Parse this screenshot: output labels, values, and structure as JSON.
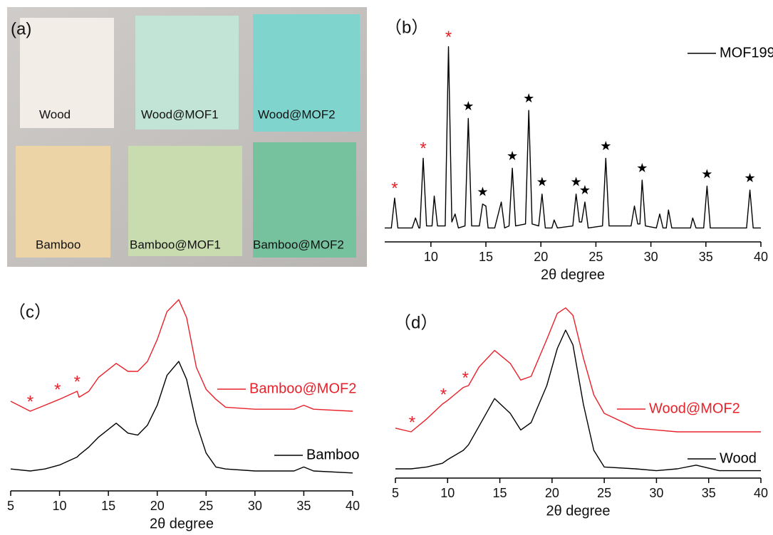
{
  "photo": {
    "label": "(a)",
    "samples": [
      "Wood",
      "Wood@MOF1",
      "Wood@MOF2",
      "Bamboo",
      "Bamboo@MOF1",
      "Bamboo@MOF2"
    ]
  },
  "chart_data": [
    {
      "type": "line",
      "label": "（b）",
      "xlabel": "2θ degree",
      "xlim": [
        5.8,
        40
      ],
      "xticks": [
        10,
        15,
        20,
        25,
        30,
        35,
        40
      ],
      "ylim": [
        0,
        100
      ],
      "legend": "upper right",
      "x": [
        5.8,
        6.4,
        6.7,
        7.0,
        8.3,
        8.6,
        8.9,
        9.0,
        9.3,
        9.6,
        10.1,
        10.3,
        10.6,
        11.3,
        11.6,
        11.9,
        12.2,
        12.5,
        13.1,
        13.4,
        13.7,
        14.4,
        14.7,
        15.0,
        15.2,
        15.8,
        16.4,
        16.7,
        17.1,
        17.4,
        17.7,
        18.6,
        18.9,
        19.2,
        19.8,
        20.1,
        20.4,
        21.0,
        21.2,
        21.5,
        22.9,
        23.2,
        23.5,
        23.7,
        24.0,
        24.3,
        25.6,
        25.9,
        26.2,
        28.2,
        28.5,
        28.8,
        29.0,
        29.2,
        29.5,
        30.5,
        30.8,
        31.1,
        31.4,
        31.6,
        31.9,
        33.6,
        33.8,
        34.1,
        34.8,
        35.1,
        35.4,
        38.7,
        39.0,
        39.3,
        40.0
      ],
      "series": [
        {
          "name": "MOF199",
          "color": "#000000",
          "values": [
            7,
            7,
            22,
            7,
            7,
            12,
            7,
            7,
            42,
            8,
            8,
            23,
            8,
            8,
            98,
            10,
            14,
            7,
            8,
            62,
            8,
            8,
            19,
            18,
            7,
            7,
            20,
            7,
            8,
            37,
            8,
            9,
            66,
            9,
            8,
            24,
            7,
            7,
            11,
            7,
            8,
            24,
            10,
            10,
            20,
            7,
            8,
            42,
            8,
            8,
            18,
            9,
            9,
            31,
            8,
            7,
            14,
            7,
            7,
            16,
            7,
            7,
            12,
            7,
            7,
            28,
            7,
            7,
            26,
            7,
            7
          ]
        }
      ],
      "annotations": [
        {
          "text": "*",
          "x": 6.7,
          "y": 22,
          "color": "#e8212a"
        },
        {
          "text": "*",
          "x": 9.3,
          "y": 42,
          "color": "#e8212a"
        },
        {
          "text": "*",
          "x": 11.6,
          "y": 98,
          "color": "#e8212a"
        },
        {
          "text": "★",
          "x": 13.4,
          "y": 62,
          "color": "#000000"
        },
        {
          "text": "★",
          "x": 14.7,
          "y": 19,
          "color": "#000000"
        },
        {
          "text": "★",
          "x": 17.4,
          "y": 37,
          "color": "#000000"
        },
        {
          "text": "★",
          "x": 18.9,
          "y": 66,
          "color": "#000000"
        },
        {
          "text": "★",
          "x": 20.1,
          "y": 24,
          "color": "#000000"
        },
        {
          "text": "★",
          "x": 23.2,
          "y": 24,
          "color": "#000000"
        },
        {
          "text": "★",
          "x": 24.0,
          "y": 20,
          "color": "#000000"
        },
        {
          "text": "★",
          "x": 25.9,
          "y": 42,
          "color": "#000000"
        },
        {
          "text": "★",
          "x": 29.2,
          "y": 31,
          "color": "#000000"
        },
        {
          "text": "★",
          "x": 35.1,
          "y": 28,
          "color": "#000000"
        },
        {
          "text": "★",
          "x": 39.0,
          "y": 26,
          "color": "#000000"
        }
      ]
    },
    {
      "type": "line",
      "label": "（c）",
      "xlabel": "2θ degree",
      "xlim": [
        5,
        40
      ],
      "xticks": [
        5,
        10,
        15,
        20,
        25,
        30,
        35,
        40
      ],
      "ylim": [
        0,
        100
      ],
      "x": [
        5,
        7,
        8.5,
        10,
        11.8,
        12,
        13,
        14,
        15.8,
        17,
        18,
        19,
        20,
        21,
        22.2,
        23,
        24,
        25,
        26,
        27,
        30,
        34,
        35,
        36,
        40
      ],
      "series": [
        {
          "name": "Bamboo@MOF2",
          "color": "#e8212a",
          "values": [
            45,
            40,
            43,
            46,
            50,
            47,
            50,
            57,
            64,
            60,
            60,
            65,
            76,
            90,
            96,
            87,
            62,
            51,
            46,
            42,
            41,
            41,
            43,
            41,
            40
          ]
        },
        {
          "name": "Bamboo",
          "color": "#000000",
          "values": [
            11,
            10,
            11,
            13,
            17,
            18,
            22,
            27,
            34,
            29,
            28,
            33,
            43,
            58,
            65,
            56,
            34,
            19,
            12,
            11,
            10,
            10,
            12,
            10,
            9
          ]
        }
      ],
      "annotations": [
        {
          "text": "*",
          "x": 7,
          "y": 40,
          "color": "#e8212a"
        },
        {
          "text": "*",
          "x": 9.8,
          "y": 46,
          "color": "#e8212a"
        },
        {
          "text": "*",
          "x": 11.8,
          "y": 50,
          "color": "#e8212a"
        }
      ]
    },
    {
      "type": "line",
      "label": "（d）",
      "xlabel": "2θ degree",
      "xlim": [
        5,
        40
      ],
      "xticks": [
        5,
        10,
        15,
        20,
        25,
        30,
        35,
        40
      ],
      "ylim": [
        0,
        100
      ],
      "x": [
        5,
        6.5,
        8,
        9.5,
        10,
        11.5,
        12,
        13,
        14.5,
        16,
        17,
        18,
        19.5,
        20.5,
        21.3,
        22,
        23,
        24,
        25,
        28,
        30,
        32,
        33.8,
        36,
        40
      ],
      "series": [
        {
          "name": "Wood@MOF2",
          "color": "#e8212a",
          "values": [
            27,
            25,
            32,
            40,
            42,
            49,
            50,
            60,
            69,
            62,
            53,
            55,
            75,
            89,
            92,
            88,
            65,
            45,
            35,
            27,
            26,
            25,
            25,
            25,
            25
          ]
        },
        {
          "name": "Wood",
          "color": "#000000",
          "values": [
            5,
            5,
            6,
            8,
            10,
            15,
            18,
            28,
            43,
            35,
            26,
            30,
            50,
            70,
            80,
            72,
            40,
            15,
            6,
            5,
            4,
            5,
            7,
            4,
            4
          ]
        }
      ],
      "annotations": [
        {
          "text": "*",
          "x": 6.6,
          "y": 25,
          "color": "#e8212a"
        },
        {
          "text": "*",
          "x": 9.6,
          "y": 40,
          "color": "#e8212a"
        },
        {
          "text": "*",
          "x": 11.7,
          "y": 49,
          "color": "#e8212a"
        }
      ]
    }
  ]
}
